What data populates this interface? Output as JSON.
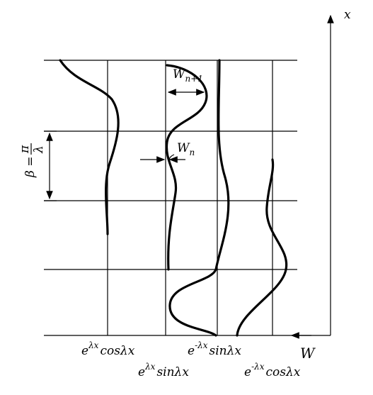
{
  "axes": {
    "vertical": "x",
    "horizontal": "W"
  },
  "curves": [
    {
      "base": "e",
      "exponent": "λx",
      "function": "cosλx"
    },
    {
      "base": "e",
      "exponent": "λx",
      "function": "sinλx"
    },
    {
      "base": "e",
      "exponent": "-λx",
      "function": "sinλx"
    },
    {
      "base": "e",
      "exponent": "-λx",
      "function": "cosλx"
    }
  ],
  "annotations": {
    "amplitude_next": {
      "symbol": "W",
      "subscript": "n+1"
    },
    "amplitude": {
      "symbol": "W",
      "subscript": "n"
    },
    "period": {
      "lhs": "β =",
      "numerator": "π",
      "denominator": "λ"
    }
  }
}
